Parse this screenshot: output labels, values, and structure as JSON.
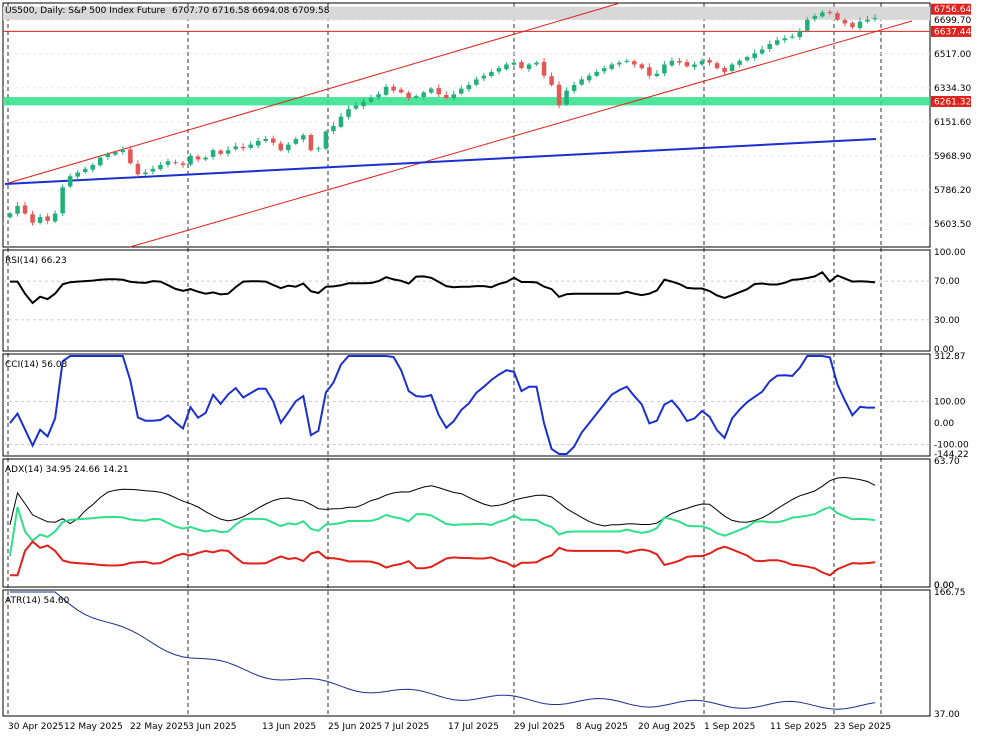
{
  "header": {
    "symbol": "US500, Daily:  S&P 500  Index Future",
    "ohlc": "6707.70 6716.58 6694.08 6709.58"
  },
  "colors": {
    "up": "#22b07a",
    "down": "#e85555",
    "channel": "#e0201a",
    "trend": "#1a2fd0",
    "zone": "#2ee08a",
    "rsi": "#000000",
    "cci": "#1a2fd0",
    "adx": "#000000",
    "plus_di": "#2ee08a",
    "minus_di": "#e0201a",
    "atr": "#1a2f90"
  },
  "x_labels": [
    "30 Apr 2025",
    "12 May 2025",
    "22 May 2025",
    "3 Jun 2025",
    "13 Jun 2025",
    "25 Jun 2025",
    "7 Jul 2025",
    "17 Jul 2025",
    "29 Jul 2025",
    "8 Aug 2025",
    "20 Aug 2025",
    "1 Sep 2025",
    "11 Sep 2025",
    "23 Sep 2025"
  ],
  "chart_data": [
    {
      "type": "candlestick",
      "title": "US500, Daily:  S&P 500  Index Future",
      "y_ticks": [
        "6699.70",
        "6517.00",
        "6334.30",
        "6151.60",
        "5968.90",
        "5786.20",
        "5603.50"
      ],
      "ylim": [
        5480,
        6790
      ],
      "price_tags": [
        {
          "label": "6756.64",
          "value": 6756.64,
          "style": "red"
        },
        {
          "label": "6699.70",
          "value": 6699.7,
          "style": "plain"
        },
        {
          "label": "6637.44",
          "value": 6637.44,
          "style": "red"
        },
        {
          "label": "6261.32",
          "value": 6261.32,
          "style": "red"
        }
      ],
      "close": [
        5660,
        5700,
        5660,
        5610,
        5640,
        5620,
        5660,
        5800,
        5860,
        5880,
        5900,
        5920,
        5960,
        5980,
        5990,
        6000,
        5930,
        5870,
        5880,
        5900,
        5920,
        5940,
        5930,
        5920,
        5970,
        5950,
        5960,
        6000,
        5980,
        6000,
        6020,
        6010,
        6030,
        6050,
        6060,
        6040,
        6000,
        6030,
        6060,
        6080,
        6000,
        6010,
        6100,
        6130,
        6180,
        6220,
        6240,
        6260,
        6280,
        6300,
        6340,
        6320,
        6310,
        6280,
        6290,
        6310,
        6330,
        6300,
        6280,
        6300,
        6330,
        6350,
        6380,
        6400,
        6420,
        6440,
        6460,
        6470,
        6440,
        6460,
        6470,
        6400,
        6350,
        6240,
        6320,
        6350,
        6380,
        6400,
        6420,
        6440,
        6460,
        6470,
        6480,
        6460,
        6440,
        6400,
        6410,
        6460,
        6480,
        6470,
        6450,
        6460,
        6480,
        6470,
        6440,
        6420,
        6460,
        6480,
        6500,
        6520,
        6540,
        6570,
        6590,
        6600,
        6610,
        6640,
        6700,
        6720,
        6740,
        6740,
        6700,
        6680,
        6660,
        6690,
        6700,
        6710
      ],
      "rsi": {
        "label": "RSI(14) 66.23",
        "y_ticks": [
          "100.00",
          "70.00",
          "30.00",
          "0.00"
        ],
        "ylim": [
          0,
          100
        ]
      },
      "cci": {
        "label": "CCI(14) 56.03",
        "y_ticks": [
          "312.87",
          "100.00",
          "0.00",
          "-100.00",
          "-144.22"
        ],
        "ylim": [
          -144.22,
          312.87
        ]
      },
      "adx": {
        "label": "ADX(14) 34.95 24.66 14.21",
        "y_ticks": [
          "63.70",
          "0.00",
          "0.00"
        ],
        "ylim": [
          0,
          63.7
        ]
      },
      "atr": {
        "label": "ATR(14) 54.60",
        "y_ticks": [
          "166.75",
          "37.00"
        ],
        "ylim": [
          37,
          166.75
        ]
      }
    }
  ]
}
